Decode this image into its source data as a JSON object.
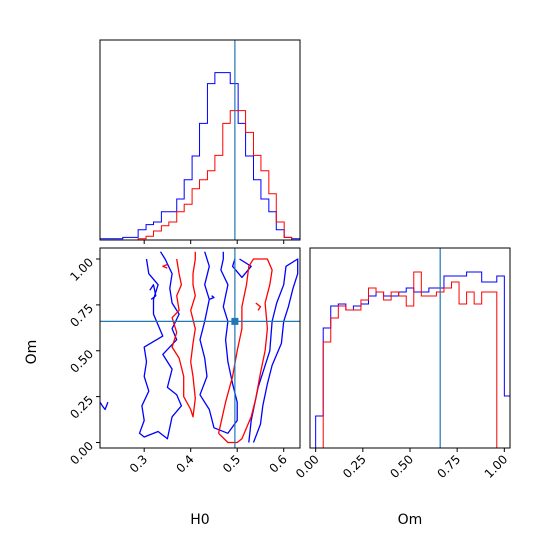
{
  "chart_data": [
    {
      "type": "histogram",
      "panel": "H0 marginal",
      "x_range": [
        0.205,
        0.635
      ],
      "truth": 0.495,
      "truth_color": "#1f77b4",
      "series": [
        {
          "color": "#0000ff",
          "bin_edges": [
            0.205,
            0.221,
            0.238,
            0.254,
            0.271,
            0.287,
            0.304,
            0.32,
            0.337,
            0.353,
            0.37,
            0.386,
            0.403,
            0.419,
            0.436,
            0.452,
            0.469,
            0.485,
            0.502,
            0.518,
            0.535,
            0.551,
            0.568,
            0.584,
            0.601,
            0.617,
            0.635
          ],
          "values": [
            0.006,
            0.006,
            0.006,
            0.013,
            0.013,
            0.051,
            0.077,
            0.09,
            0.141,
            0.141,
            0.205,
            0.301,
            0.42,
            0.583,
            0.782,
            0.837,
            0.837,
            0.782,
            0.583,
            0.42,
            0.301,
            0.205,
            0.141,
            0.051,
            0.013,
            0.006
          ]
        },
        {
          "color": "#ff0000",
          "bin_edges": [
            0.205,
            0.221,
            0.238,
            0.254,
            0.271,
            0.287,
            0.304,
            0.32,
            0.337,
            0.353,
            0.37,
            0.386,
            0.403,
            0.419,
            0.436,
            0.452,
            0.469,
            0.485,
            0.502,
            0.518,
            0.535,
            0.551,
            0.568,
            0.584,
            0.601,
            0.617,
            0.635
          ],
          "values": [
            0.0,
            0.0,
            0.0,
            0.0,
            0.0,
            0.006,
            0.019,
            0.045,
            0.071,
            0.09,
            0.141,
            0.179,
            0.256,
            0.301,
            0.346,
            0.423,
            0.583,
            0.647,
            0.647,
            0.538,
            0.423,
            0.346,
            0.231,
            0.09,
            0.013,
            0.0
          ]
        }
      ]
    },
    {
      "type": "histogram",
      "panel": "Om marginal",
      "xlabel": "Om",
      "x_range": [
        -0.03,
        1.03
      ],
      "xticks": [
        "0.00",
        "0.25",
        "0.50",
        "0.75",
        "1.00"
      ],
      "truth": 0.66,
      "truth_color": "#1f77b4",
      "series": [
        {
          "color": "#0000ff",
          "bin_edges": [
            0.0,
            0.04,
            0.08,
            0.12,
            0.16,
            0.2,
            0.24,
            0.28,
            0.32,
            0.36,
            0.4,
            0.44,
            0.48,
            0.52,
            0.56,
            0.6,
            0.64,
            0.68,
            0.72,
            0.76,
            0.8,
            0.84,
            0.88,
            0.92,
            0.96,
            1.0,
            1.03
          ],
          "values": [
            0.16,
            0.6,
            0.71,
            0.72,
            0.69,
            0.71,
            0.72,
            0.76,
            0.78,
            0.76,
            0.76,
            0.78,
            0.8,
            0.78,
            0.78,
            0.8,
            0.8,
            0.86,
            0.86,
            0.86,
            0.88,
            0.88,
            0.83,
            0.83,
            0.86,
            0.26
          ]
        },
        {
          "color": "#ff0000",
          "bin_edges": [
            0.0,
            0.04,
            0.08,
            0.12,
            0.16,
            0.2,
            0.24,
            0.28,
            0.32,
            0.36,
            0.4,
            0.44,
            0.48,
            0.52,
            0.56,
            0.6,
            0.64,
            0.68,
            0.72,
            0.76,
            0.8,
            0.84,
            0.88,
            0.92,
            0.96,
            1.0
          ],
          "values": [
            0.0,
            0.53,
            0.65,
            0.71,
            0.69,
            0.69,
            0.74,
            0.8,
            0.78,
            0.74,
            0.78,
            0.76,
            0.71,
            0.88,
            0.76,
            0.76,
            0.78,
            0.8,
            0.83,
            0.72,
            0.78,
            0.72,
            0.78,
            0.78,
            0.0
          ]
        }
      ]
    },
    {
      "type": "contour",
      "panel": "Om vs H0",
      "xlabel": "H0",
      "ylabel": "Om",
      "x_range": [
        0.205,
        0.635
      ],
      "y_range": [
        -0.03,
        1.06
      ],
      "xticks": [
        "0.3",
        "0.4",
        "0.5",
        "0.6"
      ],
      "yticks": [
        "0.00",
        "0.25",
        "0.50",
        "0.75",
        "1.00"
      ],
      "truth": {
        "H0": 0.495,
        "Om": 0.66
      },
      "truth_color": "#1f77b4",
      "series": [
        {
          "color": "#0000ff",
          "contours": [
            [
              [
                0.305,
                1.0
              ],
              [
                0.31,
                0.92
              ],
              [
                0.33,
                0.86
              ],
              [
                0.32,
                0.78
              ],
              [
                0.32,
                0.7
              ],
              [
                0.34,
                0.58
              ],
              [
                0.3,
                0.52
              ],
              [
                0.305,
                0.44
              ],
              [
                0.3,
                0.36
              ],
              [
                0.31,
                0.28
              ],
              [
                0.295,
                0.2
              ],
              [
                0.3,
                0.12
              ],
              [
                0.29,
                0.05
              ],
              [
                0.3,
                0.03
              ],
              [
                0.33,
                0.06
              ],
              [
                0.35,
                0.02
              ],
              [
                0.36,
                0.14
              ],
              [
                0.38,
                0.2
              ],
              [
                0.37,
                0.26
              ],
              [
                0.35,
                0.3
              ],
              [
                0.36,
                0.4
              ],
              [
                0.34,
                0.48
              ],
              [
                0.37,
                0.56
              ],
              [
                0.36,
                0.62
              ],
              [
                0.375,
                0.7
              ],
              [
                0.36,
                0.76
              ],
              [
                0.355,
                0.84
              ],
              [
                0.36,
                0.92
              ],
              [
                0.345,
                1.0
              ],
              [
                0.335,
                1.04
              ]
            ],
            [
              [
                0.222,
                0.22
              ],
              [
                0.216,
                0.18
              ],
              [
                0.21,
                0.2
              ],
              [
                0.205,
                0.22
              ]
            ],
            [
              [
                0.315,
                0.78
              ],
              [
                0.325,
                0.8
              ],
              [
                0.32,
                0.86
              ],
              [
                0.312,
                0.83
              ]
            ],
            [
              [
                0.43,
                1.04
              ],
              [
                0.44,
                0.96
              ],
              [
                0.43,
                0.86
              ],
              [
                0.44,
                0.78
              ],
              [
                0.43,
                0.66
              ],
              [
                0.42,
                0.56
              ],
              [
                0.43,
                0.46
              ],
              [
                0.435,
                0.36
              ],
              [
                0.42,
                0.26
              ],
              [
                0.44,
                0.18
              ],
              [
                0.45,
                0.08
              ],
              [
                0.48,
                0.05
              ],
              [
                0.5,
                0.12
              ],
              [
                0.5,
                0.22
              ],
              [
                0.49,
                0.32
              ],
              [
                0.48,
                0.44
              ],
              [
                0.475,
                0.56
              ],
              [
                0.48,
                0.66
              ],
              [
                0.47,
                0.74
              ],
              [
                0.48,
                0.86
              ],
              [
                0.465,
                0.94
              ],
              [
                0.47,
                1.0
              ],
              [
                0.47,
                1.04
              ]
            ],
            [
              [
                0.505,
                1.0
              ],
              [
                0.53,
                0.96
              ],
              [
                0.51,
                0.9
              ],
              [
                0.49,
                0.96
              ],
              [
                0.495,
                1.0
              ]
            ],
            [
              [
                0.525,
                0.0
              ],
              [
                0.53,
                0.12
              ],
              [
                0.545,
                0.3
              ],
              [
                0.57,
                0.5
              ],
              [
                0.575,
                0.66
              ],
              [
                0.585,
                0.76
              ],
              [
                0.6,
                0.86
              ],
              [
                0.605,
                0.96
              ],
              [
                0.63,
                1.0
              ],
              [
                0.63,
                0.92
              ],
              [
                0.62,
                0.84
              ],
              [
                0.61,
                0.74
              ],
              [
                0.6,
                0.66
              ],
              [
                0.595,
                0.54
              ],
              [
                0.575,
                0.42
              ],
              [
                0.565,
                0.32
              ],
              [
                0.555,
                0.2
              ],
              [
                0.55,
                0.1
              ],
              [
                0.535,
                0.0
              ]
            ],
            [
              [
                0.44,
                0.78
              ],
              [
                0.45,
                0.79
              ],
              [
                0.445,
                0.8
              ]
            ]
          ]
        },
        {
          "color": "#ff0000",
          "contours": [
            [
              [
                0.37,
                1.0
              ],
              [
                0.375,
                0.92
              ],
              [
                0.38,
                0.86
              ],
              [
                0.37,
                0.8
              ],
              [
                0.375,
                0.72
              ],
              [
                0.36,
                0.68
              ],
              [
                0.37,
                0.6
              ],
              [
                0.36,
                0.52
              ],
              [
                0.375,
                0.46
              ],
              [
                0.385,
                0.36
              ],
              [
                0.385,
                0.25
              ],
              [
                0.4,
                0.18
              ],
              [
                0.405,
                0.14
              ],
              [
                0.41,
                0.24
              ],
              [
                0.405,
                0.36
              ],
              [
                0.4,
                0.44
              ],
              [
                0.405,
                0.54
              ],
              [
                0.41,
                0.62
              ],
              [
                0.4,
                0.72
              ],
              [
                0.41,
                0.8
              ],
              [
                0.405,
                0.86
              ],
              [
                0.405,
                0.92
              ],
              [
                0.41,
                1.0
              ],
              [
                0.41,
                1.04
              ]
            ],
            [
              [
                0.35,
                0.95
              ],
              [
                0.34,
                0.96
              ],
              [
                0.35,
                0.97
              ]
            ],
            [
              [
                0.46,
                0.05
              ],
              [
                0.475,
                0.22
              ],
              [
                0.49,
                0.36
              ],
              [
                0.5,
                0.5
              ],
              [
                0.51,
                0.62
              ],
              [
                0.51,
                0.74
              ],
              [
                0.52,
                0.86
              ],
              [
                0.525,
                0.96
              ],
              [
                0.535,
                1.0
              ],
              [
                0.565,
                1.0
              ],
              [
                0.575,
                0.94
              ],
              [
                0.57,
                0.86
              ],
              [
                0.56,
                0.76
              ],
              [
                0.565,
                0.62
              ],
              [
                0.56,
                0.5
              ],
              [
                0.55,
                0.38
              ],
              [
                0.54,
                0.24
              ],
              [
                0.53,
                0.14
              ],
              [
                0.51,
                0.02
              ],
              [
                0.5,
                0.0
              ],
              [
                0.48,
                0.0
              ],
              [
                0.46,
                0.05
              ]
            ],
            [
              [
                0.54,
                0.76
              ],
              [
                0.55,
                0.74
              ],
              [
                0.545,
                0.72
              ]
            ]
          ]
        }
      ]
    }
  ]
}
